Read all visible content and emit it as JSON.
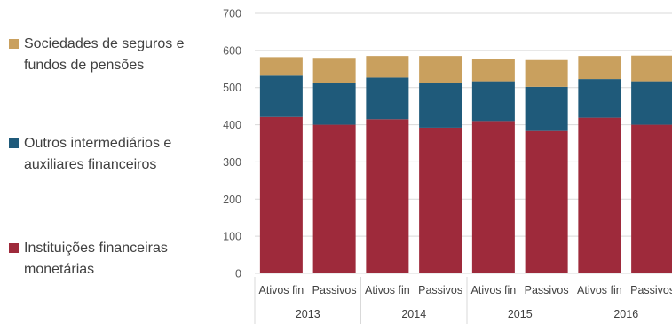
{
  "chart_data": {
    "type": "bar",
    "stacked": true,
    "yticks": [
      "0",
      "100",
      "200",
      "300",
      "400",
      "500",
      "600",
      "700"
    ],
    "ylim": [
      0,
      700
    ],
    "grid": true,
    "legend_position": "left",
    "groups": [
      "2013",
      "2014",
      "2015",
      "2016"
    ],
    "categories": [
      "Ativos fin",
      "Passivos",
      "Ativos fin",
      "Passivos",
      "Ativos fin",
      "Passivos",
      "Ativos fin",
      "Passivos"
    ],
    "series": [
      {
        "name": "Instituições financeiras monetárias",
        "color": "#9e2a3b",
        "values": [
          421,
          400,
          415,
          392,
          410,
          383,
          419,
          400
        ]
      },
      {
        "name": "Outros intermediários e auxiliares financeiros",
        "color": "#1f5a7a",
        "values": [
          111,
          113,
          112,
          121,
          107,
          119,
          104,
          117
        ]
      },
      {
        "name": "Sociedades de seguros e fundos de pensões",
        "color": "#c9a05e",
        "values": [
          50,
          67,
          58,
          72,
          60,
          72,
          62,
          69
        ]
      }
    ]
  },
  "legend": [
    {
      "label": "Sociedades de seguros e fundos de pensões",
      "color": "#c9a05e"
    },
    {
      "label": "Outros intermediários e auxiliares financeiros",
      "color": "#1f5a7a"
    },
    {
      "label": "Instituições financeiras monetárias",
      "color": "#9e2a3b"
    }
  ]
}
